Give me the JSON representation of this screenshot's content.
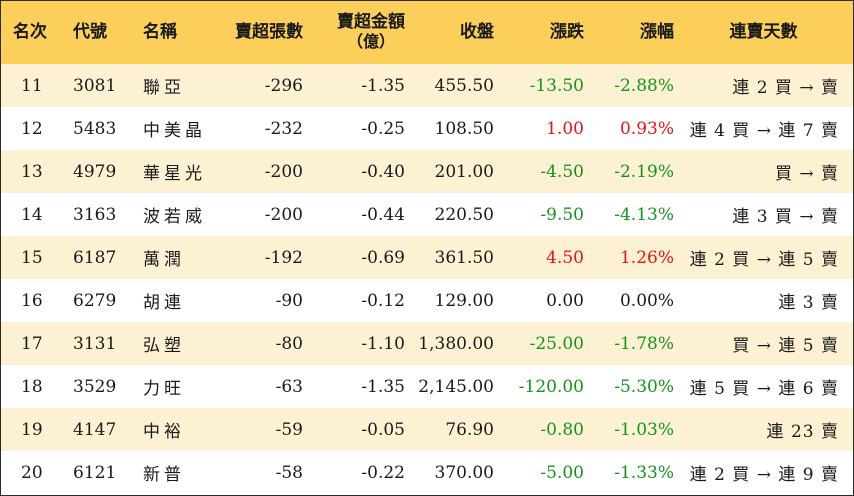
{
  "header": {
    "rank": "名次",
    "code": "代號",
    "name": "名稱",
    "net_sell_lots": "賣超張數",
    "net_sell_amount_line1": "賣超金額",
    "net_sell_amount_line2": "（億）",
    "close": "收盤",
    "change": "漲跌",
    "change_pct": "漲幅",
    "streak": "連賣天數"
  },
  "colors": {
    "header_bg": "#fbcf5a",
    "row_alt_bg": "#fdf1d3",
    "up": "#e8140f",
    "down": "#13941d"
  },
  "rows": [
    {
      "rank": "11",
      "code": "3081",
      "name": "聯亞",
      "lots": "-296",
      "amount": "-1.35",
      "close": "455.50",
      "change": "-13.50",
      "pct": "-2.88%",
      "dir": "down",
      "streak": "連 2 買 → 賣"
    },
    {
      "rank": "12",
      "code": "5483",
      "name": "中美晶",
      "lots": "-232",
      "amount": "-0.25",
      "close": "108.50",
      "change": "1.00",
      "pct": "0.93%",
      "dir": "up",
      "streak": "連 4 買 → 連 7 賣"
    },
    {
      "rank": "13",
      "code": "4979",
      "name": "華星光",
      "lots": "-200",
      "amount": "-0.40",
      "close": "201.00",
      "change": "-4.50",
      "pct": "-2.19%",
      "dir": "down",
      "streak": "買 → 賣"
    },
    {
      "rank": "14",
      "code": "3163",
      "name": "波若威",
      "lots": "-200",
      "amount": "-0.44",
      "close": "220.50",
      "change": "-9.50",
      "pct": "-4.13%",
      "dir": "down",
      "streak": "連 3 買 → 賣"
    },
    {
      "rank": "15",
      "code": "6187",
      "name": "萬潤",
      "lots": "-192",
      "amount": "-0.69",
      "close": "361.50",
      "change": "4.50",
      "pct": "1.26%",
      "dir": "up",
      "streak": "連 2 買 → 連 5 賣"
    },
    {
      "rank": "16",
      "code": "6279",
      "name": "胡連",
      "lots": "-90",
      "amount": "-0.12",
      "close": "129.00",
      "change": "0.00",
      "pct": "0.00%",
      "dir": "flat",
      "streak": "連 3 賣"
    },
    {
      "rank": "17",
      "code": "3131",
      "name": "弘塑",
      "lots": "-80",
      "amount": "-1.10",
      "close": "1,380.00",
      "change": "-25.00",
      "pct": "-1.78%",
      "dir": "down",
      "streak": "買 → 連 5 賣"
    },
    {
      "rank": "18",
      "code": "3529",
      "name": "力旺",
      "lots": "-63",
      "amount": "-1.35",
      "close": "2,145.00",
      "change": "-120.00",
      "pct": "-5.30%",
      "dir": "down",
      "streak": "連 5 買 → 連 6 賣"
    },
    {
      "rank": "19",
      "code": "4147",
      "name": "中裕",
      "lots": "-59",
      "amount": "-0.05",
      "close": "76.90",
      "change": "-0.80",
      "pct": "-1.03%",
      "dir": "down",
      "streak": "連 23 賣"
    },
    {
      "rank": "20",
      "code": "6121",
      "name": "新普",
      "lots": "-58",
      "amount": "-0.22",
      "close": "370.00",
      "change": "-5.00",
      "pct": "-1.33%",
      "dir": "down",
      "streak": "連 2 買 → 連 9 賣"
    }
  ]
}
